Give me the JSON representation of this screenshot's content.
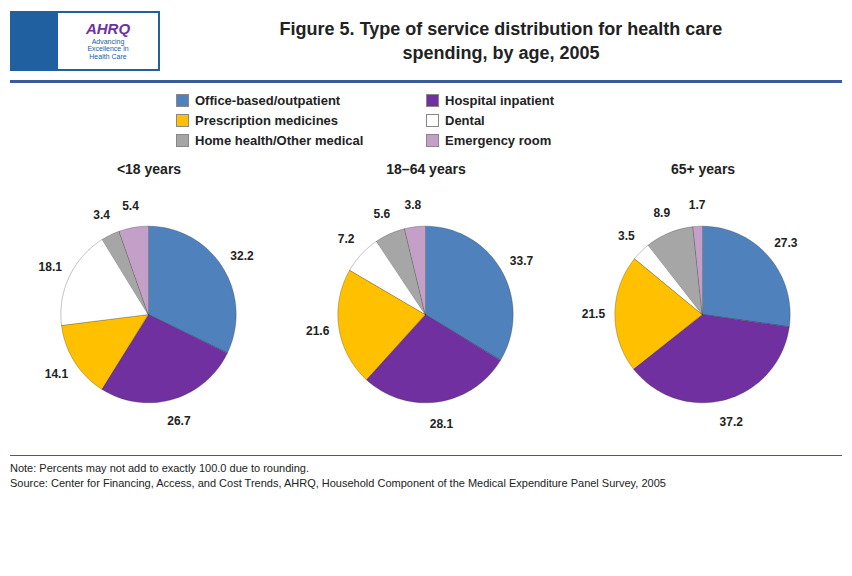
{
  "chart_data": {
    "type": "pie",
    "title": "Figure 5. Type of service distribution for health care\nspending, by age, 2005",
    "categories": [
      "Office-based/outpatient",
      "Hospital inpatient",
      "Prescription medicines",
      "Dental",
      "Home health/Other medical",
      "Emergency room"
    ],
    "colors": [
      "#4f81bd",
      "#7030a0",
      "#ffc000",
      "#ffffff",
      "#a6a6a6",
      "#c4a0c8"
    ],
    "series": [
      {
        "name": "<18 years",
        "values": [
          32.2,
          26.7,
          14.1,
          18.1,
          3.4,
          5.4
        ]
      },
      {
        "name": "18–64 years",
        "values": [
          33.7,
          28.1,
          21.6,
          7.2,
          5.6,
          3.8
        ]
      },
      {
        "name": "65+ years",
        "values": [
          27.3,
          37.2,
          21.5,
          3.5,
          8.9,
          1.7
        ]
      }
    ],
    "data_labels": true,
    "legend": "top",
    "annotations": [
      "AHRQ",
      "Advancing\nExcellence in\nHealth Care",
      "Note: Percents may not add to exactly 100.0 due to rounding.",
      "Source: Center for Financing, Access, and Cost Trends, AHRQ, Household Component of the Medical Expenditure Panel Survey, 2005"
    ]
  }
}
